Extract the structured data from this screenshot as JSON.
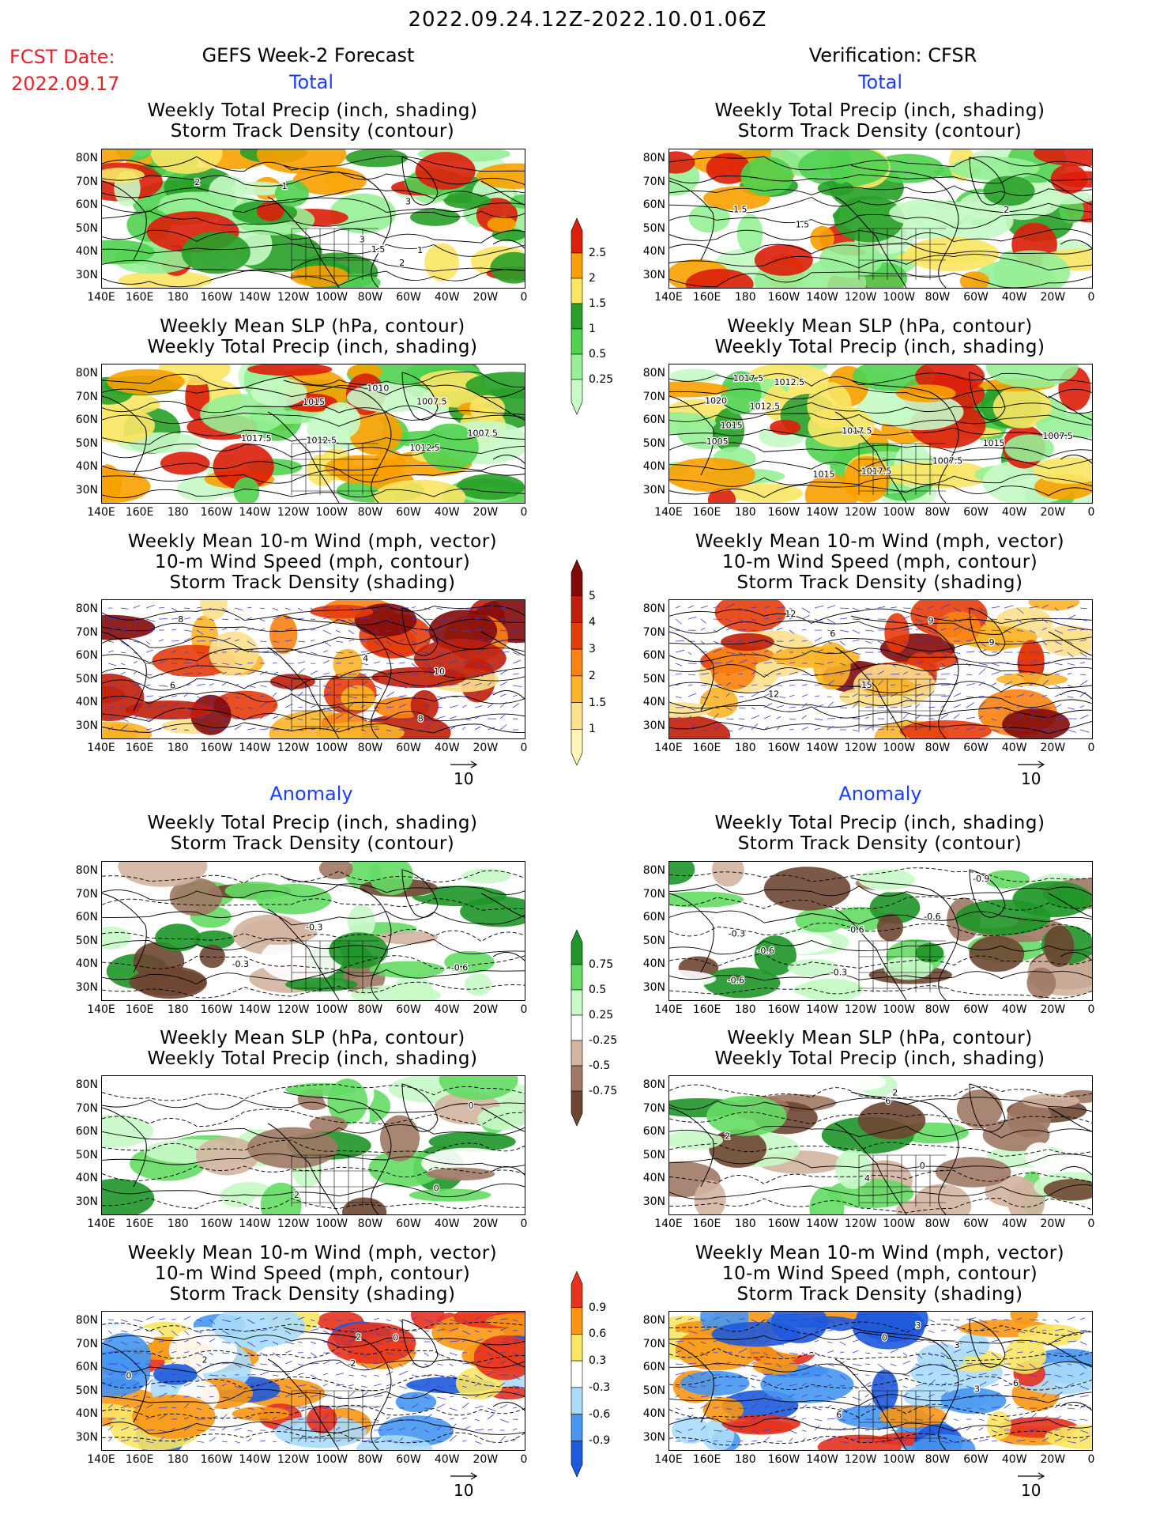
{
  "header": {
    "date_range": "2022.09.24.12Z-2022.10.01.06Z",
    "fcst_label": "FCST Date:",
    "fcst_date": "2022.09.17",
    "left_title": "GEFS Week-2 Forecast",
    "right_title": "Verification: CFSR"
  },
  "sections": {
    "total": "Total",
    "anomaly": "Anomaly"
  },
  "panel_titles": {
    "precip_storm": [
      "Weekly Total Precip (inch, shading)",
      "Storm Track Density (contour)"
    ],
    "slp_precip": [
      "Weekly Mean SLP (hPa, contour)",
      "Weekly Total Precip (inch, shading)"
    ],
    "wind_storm": [
      "Weekly Mean 10-m Wind (mph, vector)",
      "10-m Wind Speed (mph, contour)",
      "Storm Track Density (shading)"
    ]
  },
  "axes": {
    "lat_labels": [
      "80N",
      "70N",
      "60N",
      "50N",
      "40N",
      "30N"
    ],
    "lon_labels": [
      "140E",
      "160E",
      "180",
      "160W",
      "140W",
      "120W",
      "100W",
      "80W",
      "60W",
      "40W",
      "20W",
      "0"
    ]
  },
  "vector_scale": {
    "value": "10"
  },
  "colorbars": {
    "precip_total": {
      "labels": [
        "0.25",
        "0.5",
        "1",
        "1.5",
        "2",
        "2.5"
      ],
      "colors": [
        "#c8fac8",
        "#96f096",
        "#50d250",
        "#28a028",
        "#fae664",
        "#faa000",
        "#dc1e0a"
      ]
    },
    "storm_total": {
      "labels": [
        "1",
        "1.5",
        "2",
        "3",
        "4",
        "5"
      ],
      "colors": [
        "#fff5b4",
        "#fde08c",
        "#fcb428",
        "#fa8214",
        "#e63c0a",
        "#c01e0a",
        "#820a0a"
      ]
    },
    "precip_anom": {
      "labels": [
        "-0.75",
        "-0.5",
        "-0.25",
        "0.25",
        "0.5",
        "0.75"
      ],
      "colors": [
        "#6e4632",
        "#a07864",
        "#d2b4a0",
        "#ffffff",
        "#c8fac8",
        "#64dc64",
        "#1e9628"
      ]
    },
    "storm_anom": {
      "labels": [
        "-0.9",
        "-0.6",
        "-0.3",
        "0.3",
        "0.6",
        "0.9"
      ],
      "colors": [
        "#1e5adc",
        "#4696f0",
        "#aadcfa",
        "#ffffff",
        "#fae664",
        "#fa9614",
        "#e6321e"
      ]
    }
  },
  "panels": [
    {
      "id": "fc-total-precip",
      "contour_labels": [
        "1",
        "2",
        "3",
        "1.5",
        "2",
        "3",
        "1"
      ]
    },
    {
      "id": "ver-total-precip",
      "contour_labels": [
        "1.5",
        "1.5",
        "2"
      ]
    },
    {
      "id": "fc-total-slp",
      "contour_labels": [
        "1012.5",
        "1007.5",
        "1007.5",
        "1010",
        "1012.5",
        "1015",
        "1017.5"
      ]
    },
    {
      "id": "ver-total-slp",
      "contour_labels": [
        "1017.5",
        "1015",
        "1005",
        "1007.5",
        "1012.5",
        "1017.5",
        "1015",
        "1007.5",
        "1012.5",
        "1020",
        "1017.5",
        "1015"
      ]
    },
    {
      "id": "fc-total-wind",
      "contour_labels": [
        "8",
        "10",
        "6",
        "4",
        "8"
      ]
    },
    {
      "id": "ver-total-wind",
      "contour_labels": [
        "9",
        "6",
        "12",
        "9",
        "15",
        "12"
      ]
    },
    {
      "id": "fc-anom-precip",
      "contour_labels": [
        "-0.3",
        "-0.6",
        "-0.3"
      ]
    },
    {
      "id": "ver-anom-precip",
      "contour_labels": [
        "-0.6",
        "-0.6",
        "-0.3",
        "-0.6",
        "-0.9",
        "-0.3",
        "-0.6"
      ]
    },
    {
      "id": "fc-anom-slp",
      "contour_labels": [
        "0",
        "0",
        "2"
      ]
    },
    {
      "id": "ver-anom-slp",
      "contour_labels": [
        "6",
        "4",
        "2",
        "0",
        "2"
      ]
    },
    {
      "id": "fc-anom-wind",
      "contour_labels": [
        "2",
        "0",
        "2",
        "2",
        "0"
      ]
    },
    {
      "id": "ver-anom-wind",
      "contour_labels": [
        "6",
        "0",
        "3",
        "3",
        "6",
        "3"
      ]
    }
  ]
}
